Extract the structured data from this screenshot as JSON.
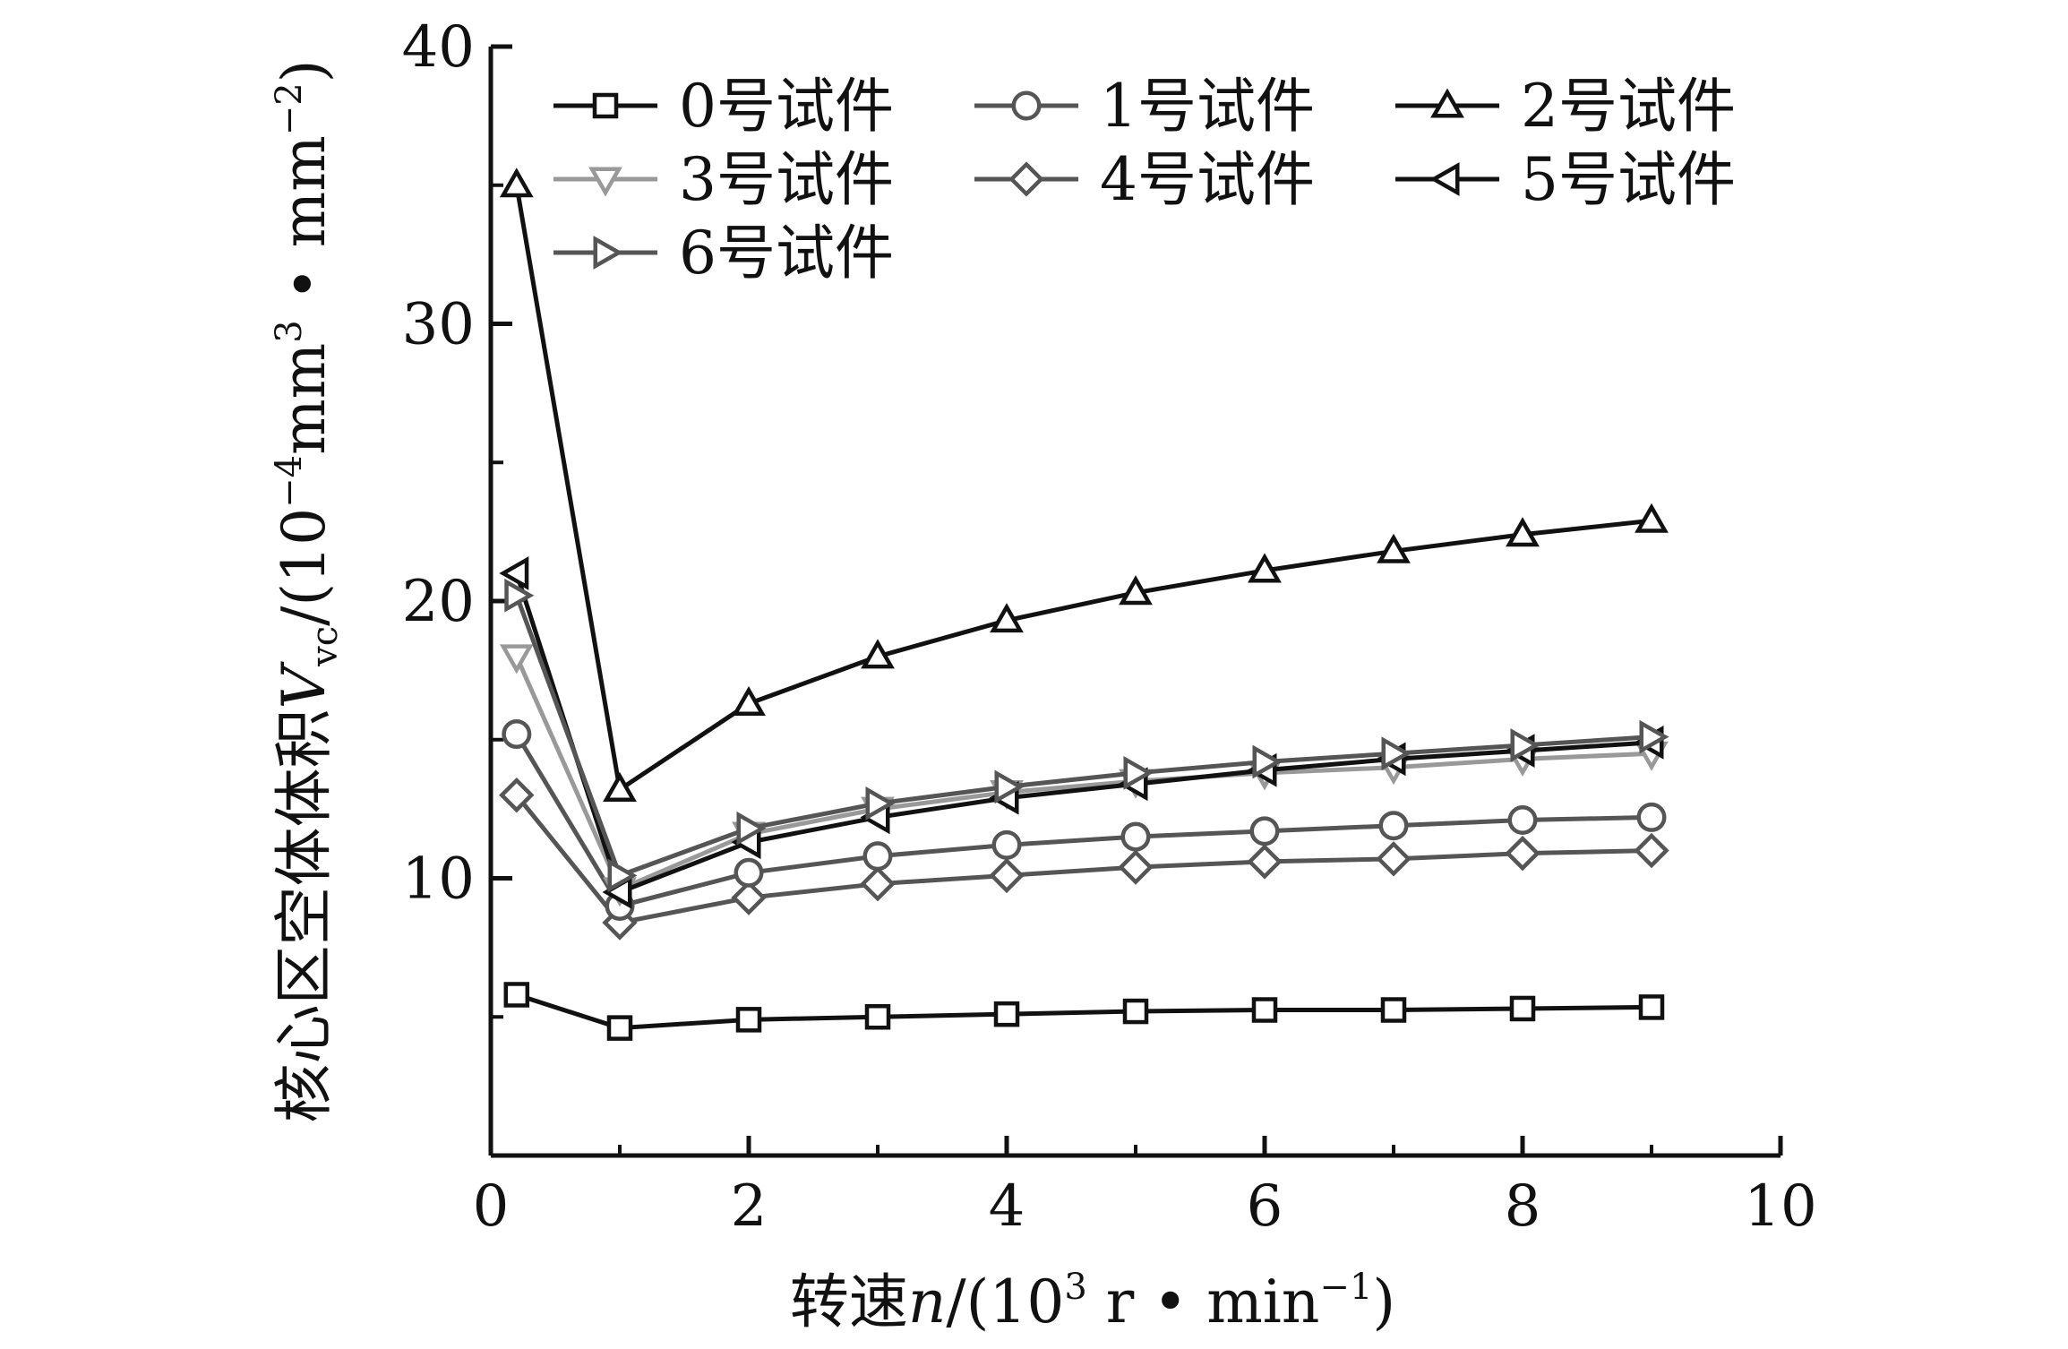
{
  "chart_data": {
    "type": "line",
    "title": "",
    "xlabel": {
      "prefix": "转速",
      "var": "n",
      "unit_open": "/(10",
      "unit_exp": "3",
      "unit_mid": " r • min",
      "unit_exp2": "−1",
      "unit_close": ")"
    },
    "ylabel": {
      "prefix": "核心区空体体积",
      "var": "V",
      "var_sub": "vc",
      "unit_open": "/(10",
      "unit_exp": "−4",
      "unit_mid": "mm",
      "unit_exp2": "3",
      "unit_mid2": " • mm",
      "unit_exp3": "−2",
      "unit_close": ")"
    },
    "xlim": [
      0,
      10
    ],
    "ylim": [
      0,
      40
    ],
    "x_ticks": [
      "0",
      "2",
      "4",
      "6",
      "8",
      "10"
    ],
    "y_ticks": [
      "10",
      "20",
      "30",
      "40"
    ],
    "grid": false,
    "legend_position": "top",
    "x": [
      0.2,
      1,
      2,
      3,
      4,
      5,
      6,
      7,
      8,
      9
    ],
    "series": [
      {
        "name": "0号试件",
        "marker": "square",
        "color": "#111111",
        "values": [
          5.8,
          4.6,
          4.9,
          5.0,
          5.1,
          5.2,
          5.25,
          5.25,
          5.3,
          5.35
        ]
      },
      {
        "name": "1号试件",
        "marker": "circle",
        "color": "#555555",
        "values": [
          15.2,
          9.0,
          10.2,
          10.8,
          11.2,
          11.5,
          11.7,
          11.9,
          12.1,
          12.2
        ]
      },
      {
        "name": "2号试件",
        "marker": "triangle-up",
        "color": "#111111",
        "values": [
          35.0,
          13.2,
          16.3,
          18.0,
          19.3,
          20.3,
          21.1,
          21.8,
          22.4,
          22.9
        ]
      },
      {
        "name": "3号试件",
        "marker": "triangle-down",
        "color": "#999999",
        "values": [
          18.0,
          9.6,
          11.6,
          12.5,
          13.1,
          13.5,
          13.8,
          14.0,
          14.3,
          14.5
        ]
      },
      {
        "name": "4号试件",
        "marker": "diamond",
        "color": "#555555",
        "values": [
          13.0,
          8.4,
          9.3,
          9.8,
          10.1,
          10.4,
          10.6,
          10.7,
          10.9,
          11.0
        ]
      },
      {
        "name": "5号试件",
        "marker": "triangle-left",
        "color": "#111111",
        "values": [
          21.0,
          9.5,
          11.3,
          12.2,
          12.9,
          13.4,
          13.9,
          14.3,
          14.6,
          14.9
        ]
      },
      {
        "name": "6号试件",
        "marker": "triangle-right",
        "color": "#555555",
        "values": [
          20.2,
          10.1,
          11.8,
          12.7,
          13.3,
          13.8,
          14.2,
          14.5,
          14.8,
          15.1
        ]
      }
    ]
  }
}
